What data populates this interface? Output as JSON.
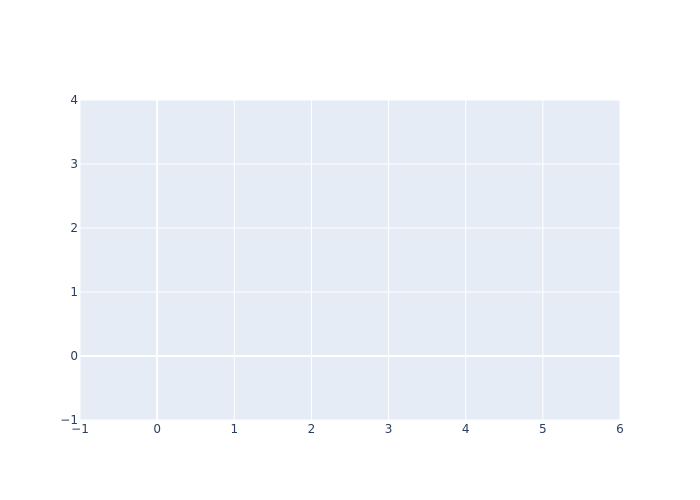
{
  "chart_data": {
    "type": "scatter",
    "title": "",
    "xlabel": "",
    "ylabel": "",
    "xlim": [
      -1,
      6
    ],
    "ylim": [
      -1,
      4
    ],
    "x_ticks": [
      "−1",
      "0",
      "1",
      "2",
      "3",
      "4",
      "5",
      "6"
    ],
    "y_ticks": [
      "−1",
      "0",
      "1",
      "2",
      "3",
      "4"
    ],
    "series": [],
    "grid": true,
    "legend": "none"
  },
  "colors": {
    "plot_background": "#e5ecf6",
    "gridline": "#ffffff",
    "tick_text": "#2a3f5f",
    "page_background": "#ffffff"
  }
}
